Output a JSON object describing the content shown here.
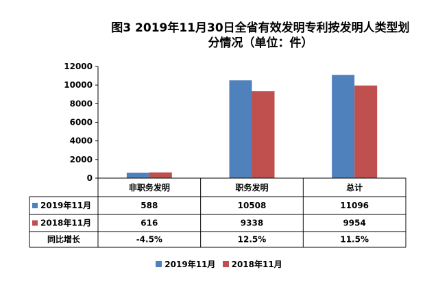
{
  "title_line1": "图3  2019年11月30日全省有效发明专利按发明人类型划",
  "title_line2": "分情况（单位：件）",
  "chart_data": {
    "type": "bar",
    "title": "图3  2019年11月30日全省有效发明专利按发明人类型划分情况（单位：件）",
    "categories": [
      "非职务发明",
      "职务发明",
      "总计"
    ],
    "series": [
      {
        "name": "2019年11月",
        "values": [
          588,
          10508,
          11096
        ],
        "color": "#4F81BD"
      },
      {
        "name": "2018年11月",
        "values": [
          616,
          9338,
          9954
        ],
        "color": "#C0504D"
      }
    ],
    "ylim": [
      0,
      12000
    ],
    "yticks": [
      0,
      2000,
      4000,
      6000,
      8000,
      10000,
      12000
    ],
    "grid": false,
    "legend": "bottom"
  },
  "table": {
    "rows": [
      {
        "label": "2019年11月",
        "values": [
          "588",
          "10508",
          "11096"
        ],
        "swatch": "#4F81BD"
      },
      {
        "label": "2018年11月",
        "values": [
          "616",
          "9338",
          "9954"
        ],
        "swatch": "#C0504D"
      },
      {
        "label": "同比增长",
        "values": [
          "-4.5%",
          "12.5%",
          "11.5%"
        ],
        "swatch": ""
      }
    ]
  }
}
